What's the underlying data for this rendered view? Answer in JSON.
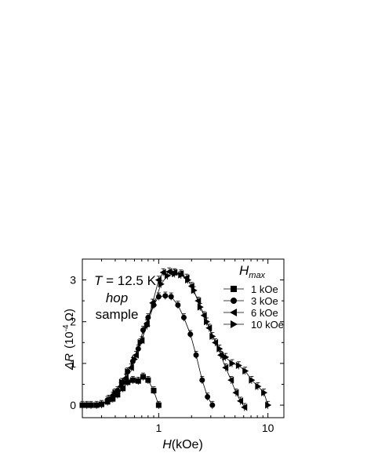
{
  "chart_data": {
    "type": "scatter",
    "x_scale": "log",
    "xlim": [
      0.2,
      14
    ],
    "ylim": [
      -0.3,
      3.5
    ],
    "x_ticks": [
      1,
      10
    ],
    "x_tick_labels": [
      "1",
      "10"
    ],
    "y_ticks": [
      0,
      1,
      2,
      3
    ],
    "y_tick_labels": [
      "0",
      "1",
      "2",
      "3"
    ],
    "xlabel_italic": "H",
    "xlabel_rest": "(kOe)",
    "ylabel_main": "ΔR",
    "ylabel_unit_open": "(10",
    "ylabel_unit_exp": "-4",
    "ylabel_unit_close": " Ω)",
    "annotation_T_italic": "T",
    "annotation_T_rest": " = 12.5 K",
    "annotation_hop": "hop",
    "annotation_sample": "sample",
    "legend_title_main": "H",
    "legend_title_sub": "max",
    "legend_position": "top-right",
    "error_bars": true,
    "series": [
      {
        "name": "1 kOe",
        "marker": "square",
        "x": [
          0.2,
          0.22,
          0.24,
          0.27,
          0.3,
          0.34,
          0.38,
          0.42,
          0.47,
          0.52,
          0.58,
          0.65,
          0.72,
          0.8,
          0.9,
          1.0
        ],
        "y": [
          0.0,
          0.0,
          0.0,
          0.0,
          0.02,
          0.08,
          0.15,
          0.25,
          0.4,
          0.55,
          0.6,
          0.58,
          0.68,
          0.6,
          0.35,
          0.0
        ]
      },
      {
        "name": "3 kOe",
        "marker": "circle",
        "x": [
          0.3,
          0.34,
          0.38,
          0.42,
          0.47,
          0.52,
          0.58,
          0.65,
          0.72,
          0.8,
          0.9,
          1.0,
          1.15,
          1.3,
          1.5,
          1.7,
          1.95,
          2.2,
          2.5,
          2.8,
          3.1
        ],
        "y": [
          0.02,
          0.12,
          0.22,
          0.35,
          0.55,
          0.8,
          1.05,
          1.35,
          1.8,
          2.1,
          2.4,
          2.6,
          2.62,
          2.6,
          2.4,
          2.1,
          1.7,
          1.2,
          0.6,
          0.2,
          0.0
        ]
      },
      {
        "name": "6 kOe",
        "marker": "triangle-left",
        "x": [
          0.35,
          0.4,
          0.45,
          0.5,
          0.56,
          0.62,
          0.7,
          0.78,
          0.88,
          1.0,
          1.1,
          1.25,
          1.4,
          1.6,
          1.8,
          2.0,
          2.3,
          2.6,
          2.9,
          3.3,
          3.7,
          4.1,
          4.6,
          5.1,
          5.6,
          6.1
        ],
        "y": [
          0.15,
          0.3,
          0.45,
          0.65,
          0.9,
          1.2,
          1.55,
          1.95,
          2.45,
          3.0,
          3.18,
          3.2,
          3.18,
          3.15,
          3.05,
          2.85,
          2.5,
          2.15,
          1.85,
          1.5,
          1.2,
          0.9,
          0.6,
          0.3,
          0.1,
          -0.05
        ]
      },
      {
        "name": "10 kOe",
        "marker": "triangle-right",
        "x": [
          0.4,
          0.46,
          0.52,
          0.6,
          0.68,
          0.78,
          0.9,
          1.05,
          1.2,
          1.4,
          1.6,
          1.85,
          2.1,
          2.4,
          2.75,
          3.1,
          3.6,
          4.1,
          4.7,
          5.4,
          6.2,
          7.1,
          8.1,
          9.2,
          10.0
        ],
        "y": [
          0.3,
          0.55,
          0.8,
          1.1,
          1.5,
          1.9,
          2.4,
          2.9,
          3.1,
          3.15,
          3.12,
          3.0,
          2.75,
          2.35,
          2.0,
          1.65,
          1.35,
          1.15,
          1.0,
          0.95,
          0.82,
          0.6,
          0.45,
          0.3,
          0.0
        ]
      }
    ]
  }
}
